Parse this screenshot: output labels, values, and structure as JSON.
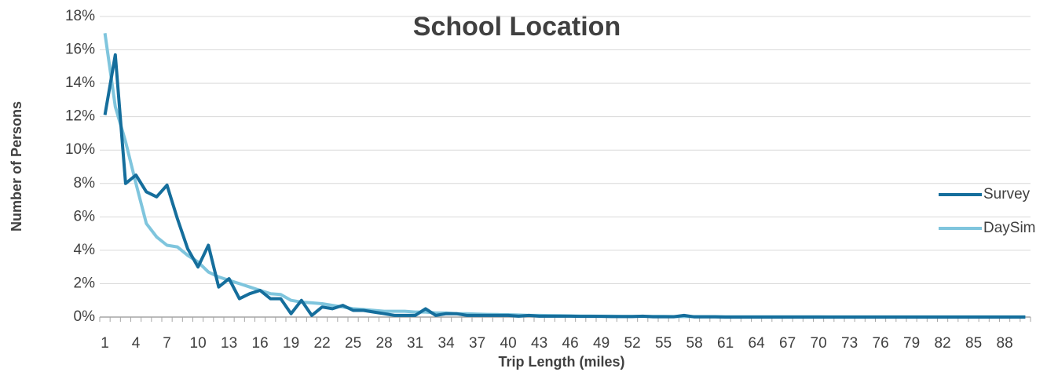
{
  "chart_data": {
    "type": "line",
    "title": "School Location",
    "x_label": "Trip Length (miles)",
    "y_label": "Number of Persons",
    "categories": [
      1,
      null,
      null,
      4,
      null,
      null,
      7,
      null,
      null,
      10,
      null,
      null,
      13,
      null,
      null,
      16,
      null,
      null,
      19,
      null,
      null,
      22,
      null,
      null,
      25,
      null,
      null,
      28,
      null,
      null,
      31,
      null,
      null,
      34,
      null,
      null,
      37,
      null,
      null,
      40,
      null,
      null,
      43,
      null,
      null,
      46,
      null,
      null,
      49,
      null,
      null,
      52,
      null,
      null,
      55,
      null,
      null,
      58,
      null,
      null,
      61,
      null,
      null,
      64,
      null,
      null,
      67,
      null,
      null,
      70,
      null,
      null,
      73,
      null,
      null,
      76,
      null,
      null,
      79,
      null,
      null,
      82,
      null,
      null,
      85,
      null,
      null,
      88,
      null,
      null
    ],
    "series": [
      {
        "name": "Survey",
        "color": "#156e9c",
        "values": [
          12.1,
          15.7,
          8.0,
          8.5,
          7.5,
          7.2,
          7.9,
          5.9,
          4.1,
          3.0,
          4.3,
          1.8,
          2.3,
          1.1,
          1.4,
          1.6,
          1.1,
          1.1,
          0.2,
          1.0,
          0.1,
          0.6,
          0.5,
          0.7,
          0.4,
          0.4,
          0.3,
          0.2,
          0.1,
          0.1,
          0.1,
          0.5,
          0.1,
          0.2,
          0.2,
          0.1,
          0.1,
          0.1,
          0.1,
          0.1,
          0.05,
          0.1,
          0.05,
          0.05,
          0.05,
          0.05,
          0.04,
          0.04,
          0.04,
          0.03,
          0.03,
          0.03,
          0.05,
          0.02,
          0.02,
          0.02,
          0.1,
          0.01,
          0.01,
          0.01,
          0,
          0,
          0,
          0,
          0,
          0,
          0,
          0,
          0,
          0,
          0,
          0,
          0,
          0,
          0,
          0,
          0,
          0,
          0,
          0,
          0,
          0,
          0,
          0,
          0,
          0,
          0,
          0,
          0,
          0
        ]
      },
      {
        "name": "DaySim",
        "color": "#7fc5dd",
        "values": [
          17.0,
          12.6,
          10.5,
          8.0,
          5.6,
          4.8,
          4.3,
          4.2,
          3.7,
          3.3,
          2.7,
          2.4,
          2.2,
          2.0,
          1.8,
          1.6,
          1.4,
          1.35,
          1.0,
          0.9,
          0.85,
          0.8,
          0.7,
          0.6,
          0.5,
          0.45,
          0.4,
          0.35,
          0.35,
          0.35,
          0.3,
          0.3,
          0.25,
          0.25,
          0.2,
          0.2,
          0.18,
          0.16,
          0.15,
          0.14,
          0.12,
          0.1,
          0.1,
          0.09,
          0.08,
          0.07,
          0.06,
          0.06,
          0.05,
          0.05,
          0.04,
          0.04,
          0.04,
          0.04,
          0.04,
          0.03,
          0.03,
          0.03,
          0.03,
          0.03,
          0.02,
          0.02,
          0.02,
          0.02,
          0.02,
          0.02,
          0.02,
          0.02,
          0.02,
          0.02,
          0.01,
          0.01,
          0.01,
          0.01,
          0.01,
          0.01,
          0.01,
          0.01,
          0.01,
          0.01,
          0.01,
          0.01,
          0.01,
          0.01,
          0.01,
          0.01,
          0.01,
          0.01,
          0.01,
          0.01
        ]
      }
    ],
    "ylim": [
      0,
      18
    ],
    "yticks": [
      {
        "value": 0,
        "label": "0%"
      },
      {
        "value": 2,
        "label": "2%"
      },
      {
        "value": 4,
        "label": "4%"
      },
      {
        "value": 6,
        "label": "6%"
      },
      {
        "value": 8,
        "label": "8%"
      },
      {
        "value": 10,
        "label": "10%"
      },
      {
        "value": 12,
        "label": "12%"
      },
      {
        "value": 14,
        "label": "14%"
      },
      {
        "value": 16,
        "label": "16%"
      },
      {
        "value": 18,
        "label": "18%"
      }
    ],
    "grid": true,
    "legend": "right"
  }
}
